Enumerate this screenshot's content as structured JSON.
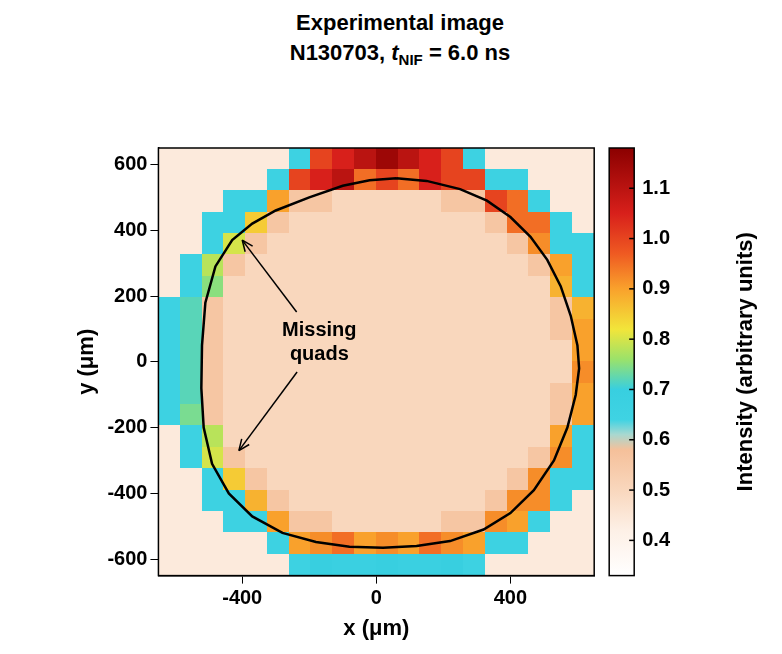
{
  "chart_data": {
    "type": "heatmap",
    "title": "Experimental image",
    "subtitle": "N130703, tNIF = 6.0 ns",
    "x_label": "x (μm)",
    "y_label": "y (μm)",
    "xlim": [
      -650,
      650
    ],
    "ylim": [
      -650,
      650
    ],
    "xticks": [
      -400,
      0,
      400
    ],
    "yticks": [
      -600,
      -400,
      -200,
      0,
      200,
      400,
      600
    ],
    "grid": false,
    "x": [
      -617.5,
      -552.5,
      -487.5,
      -422.5,
      -357.5,
      -292.5,
      -227.5,
      -162.5,
      -97.5,
      -32.5,
      32.5,
      97.5,
      162.5,
      227.5,
      292.5,
      357.5,
      422.5,
      487.5,
      552.5,
      617.5
    ],
    "y": [
      617.5,
      552.5,
      487.5,
      422.5,
      357.5,
      292.5,
      227.5,
      162.5,
      97.5,
      32.5,
      -32.5,
      -97.5,
      -162.5,
      -227.5,
      -292.5,
      -357.5,
      -422.5,
      -487.5,
      -552.5,
      -617.5
    ],
    "cells": [
      [
        0.44,
        0.44,
        0.44,
        0.44,
        0.44,
        0.44,
        0.66,
        1.0,
        1.05,
        1.1,
        1.15,
        1.1,
        1.05,
        1.0,
        0.66,
        0.44,
        0.44,
        0.44,
        0.44,
        0.44
      ],
      [
        0.44,
        0.44,
        0.44,
        0.44,
        0.44,
        0.66,
        1.0,
        1.05,
        1.1,
        0.95,
        1.0,
        0.95,
        1.05,
        1.0,
        1.0,
        0.66,
        0.66,
        0.44,
        0.44,
        0.44
      ],
      [
        0.44,
        0.44,
        0.44,
        0.66,
        0.66,
        0.9,
        0.56,
        0.56,
        0.5,
        0.5,
        0.5,
        0.5,
        0.5,
        0.56,
        0.56,
        1.0,
        0.95,
        0.66,
        0.44,
        0.44
      ],
      [
        0.44,
        0.44,
        0.66,
        0.66,
        0.85,
        0.56,
        0.5,
        0.5,
        0.5,
        0.5,
        0.5,
        0.5,
        0.5,
        0.5,
        0.5,
        0.56,
        0.95,
        0.95,
        0.66,
        0.44
      ],
      [
        0.44,
        0.44,
        0.66,
        0.8,
        0.56,
        0.5,
        0.5,
        0.5,
        0.5,
        0.5,
        0.5,
        0.5,
        0.5,
        0.5,
        0.5,
        0.5,
        0.56,
        0.92,
        0.66,
        0.66
      ],
      [
        0.44,
        0.66,
        0.78,
        0.56,
        0.5,
        0.5,
        0.5,
        0.5,
        0.5,
        0.5,
        0.5,
        0.5,
        0.5,
        0.5,
        0.5,
        0.5,
        0.5,
        0.56,
        0.9,
        0.66
      ],
      [
        0.44,
        0.66,
        0.75,
        0.5,
        0.5,
        0.5,
        0.5,
        0.5,
        0.5,
        0.5,
        0.5,
        0.5,
        0.5,
        0.5,
        0.5,
        0.5,
        0.5,
        0.5,
        0.88,
        0.66
      ],
      [
        0.66,
        0.72,
        0.56,
        0.5,
        0.5,
        0.5,
        0.5,
        0.5,
        0.5,
        0.5,
        0.5,
        0.5,
        0.5,
        0.5,
        0.5,
        0.5,
        0.5,
        0.5,
        0.56,
        0.88
      ],
      [
        0.66,
        0.72,
        0.56,
        0.5,
        0.5,
        0.5,
        0.5,
        0.5,
        0.5,
        0.5,
        0.5,
        0.5,
        0.5,
        0.5,
        0.5,
        0.5,
        0.5,
        0.5,
        0.56,
        0.9
      ],
      [
        0.66,
        0.72,
        0.56,
        0.5,
        0.5,
        0.5,
        0.5,
        0.5,
        0.5,
        0.5,
        0.5,
        0.5,
        0.5,
        0.5,
        0.5,
        0.5,
        0.5,
        0.5,
        0.5,
        0.9
      ],
      [
        0.66,
        0.72,
        0.56,
        0.5,
        0.5,
        0.5,
        0.5,
        0.5,
        0.5,
        0.5,
        0.5,
        0.5,
        0.5,
        0.5,
        0.5,
        0.5,
        0.5,
        0.5,
        0.5,
        0.92
      ],
      [
        0.66,
        0.72,
        0.56,
        0.5,
        0.5,
        0.5,
        0.5,
        0.5,
        0.5,
        0.5,
        0.5,
        0.5,
        0.5,
        0.5,
        0.5,
        0.5,
        0.5,
        0.5,
        0.56,
        0.9
      ],
      [
        0.66,
        0.74,
        0.56,
        0.5,
        0.5,
        0.5,
        0.5,
        0.5,
        0.5,
        0.5,
        0.5,
        0.5,
        0.5,
        0.5,
        0.5,
        0.5,
        0.5,
        0.5,
        0.56,
        0.9
      ],
      [
        0.44,
        0.66,
        0.78,
        0.5,
        0.5,
        0.5,
        0.5,
        0.5,
        0.5,
        0.5,
        0.5,
        0.5,
        0.5,
        0.5,
        0.5,
        0.5,
        0.5,
        0.5,
        0.9,
        0.66
      ],
      [
        0.44,
        0.66,
        0.8,
        0.56,
        0.5,
        0.5,
        0.5,
        0.5,
        0.5,
        0.5,
        0.5,
        0.5,
        0.5,
        0.5,
        0.5,
        0.5,
        0.5,
        0.56,
        0.92,
        0.66
      ],
      [
        0.44,
        0.44,
        0.66,
        0.85,
        0.56,
        0.5,
        0.5,
        0.5,
        0.5,
        0.5,
        0.5,
        0.5,
        0.5,
        0.5,
        0.5,
        0.5,
        0.56,
        0.92,
        0.66,
        0.66
      ],
      [
        0.44,
        0.44,
        0.66,
        0.66,
        0.88,
        0.56,
        0.5,
        0.5,
        0.5,
        0.5,
        0.5,
        0.5,
        0.5,
        0.5,
        0.5,
        0.56,
        0.92,
        0.92,
        0.66,
        0.44
      ],
      [
        0.44,
        0.44,
        0.44,
        0.66,
        0.66,
        0.9,
        0.56,
        0.56,
        0.5,
        0.5,
        0.5,
        0.5,
        0.5,
        0.56,
        0.56,
        0.92,
        0.9,
        0.66,
        0.44,
        0.44
      ],
      [
        0.44,
        0.44,
        0.44,
        0.44,
        0.44,
        0.66,
        0.9,
        0.92,
        0.95,
        0.9,
        0.92,
        0.9,
        0.95,
        0.92,
        0.9,
        0.66,
        0.66,
        0.44,
        0.44,
        0.44
      ],
      [
        0.44,
        0.44,
        0.44,
        0.44,
        0.44,
        0.44,
        0.66,
        0.7,
        0.68,
        0.68,
        0.7,
        0.68,
        0.68,
        0.7,
        0.66,
        0.44,
        0.44,
        0.44,
        0.44,
        0.44
      ]
    ],
    "colorbar": {
      "label": "Intensity (arbitrary units)",
      "range": [
        0.33,
        1.18
      ],
      "ticks": [
        0.4,
        0.5,
        0.6,
        0.7,
        0.8,
        0.9,
        {
          "value": 1,
          "label": "1.0"
        },
        1.1
      ]
    },
    "contour": {
      "color": "#000000",
      "x": [
        60,
        150,
        250,
        330,
        400,
        460,
        510,
        550,
        580,
        600,
        605,
        595,
        570,
        530,
        470,
        400,
        320,
        220,
        120,
        20,
        -80,
        -180,
        -280,
        -370,
        -440,
        -490,
        -515,
        -522,
        -520,
        -510,
        -480,
        -430,
        -370,
        -300,
        -200,
        -100,
        -20,
        60
      ],
      "y": [
        558,
        550,
        525,
        490,
        440,
        380,
        310,
        230,
        140,
        50,
        -20,
        -100,
        -200,
        -300,
        -390,
        -460,
        -510,
        -545,
        -560,
        -565,
        -562,
        -548,
        -520,
        -470,
        -400,
        -310,
        -200,
        -80,
        50,
        180,
        290,
        370,
        420,
        460,
        500,
        535,
        552,
        558
      ]
    },
    "annotations": [
      {
        "text": "Missing quads",
        "x": -170,
        "y": 60,
        "arrows": [
          [
            -400,
            370
          ],
          [
            -410,
            -270
          ]
        ]
      }
    ]
  }
}
